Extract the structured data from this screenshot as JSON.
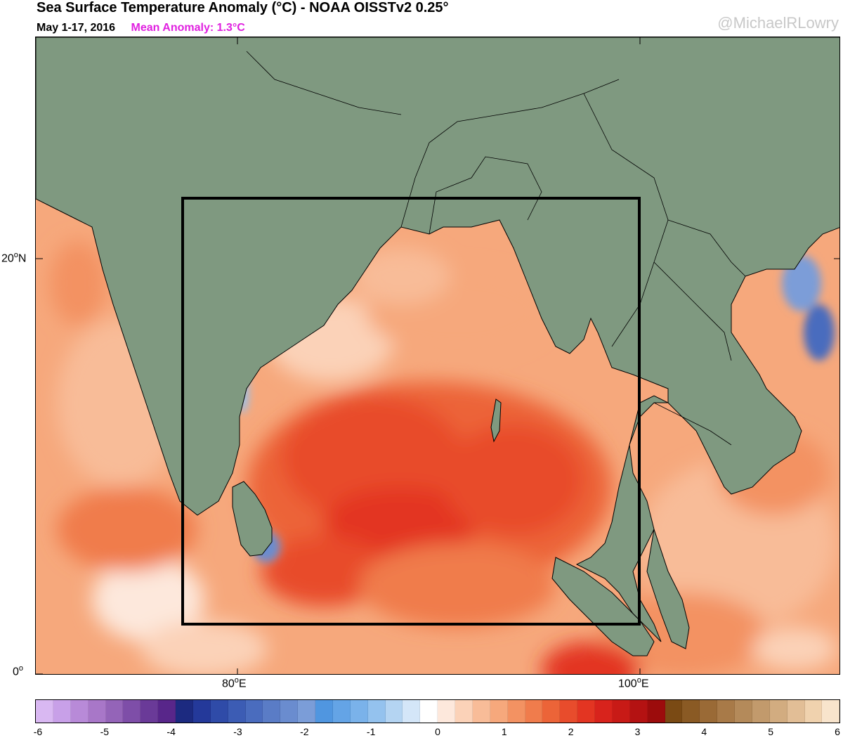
{
  "header": {
    "title": "Sea Surface Temperature Anomaly (°C) - NOAA OISSTv2 0.25°",
    "date_range": "May 1-17, 2016",
    "mean_anomaly": "Mean Anomaly: 1.3°C",
    "credit": "@MichaelRLowry"
  },
  "axes": {
    "lat_labels": [
      {
        "deg": "20",
        "hemi": "N"
      },
      {
        "deg": "0",
        "hemi": ""
      }
    ],
    "lon_labels": [
      {
        "deg": "80",
        "hemi": "E"
      },
      {
        "deg": "100",
        "hemi": "E"
      }
    ]
  },
  "colorbar": {
    "tick_labels": [
      "-6",
      "-5",
      "-4",
      "-3",
      "-2",
      "-1",
      "0",
      "1",
      "2",
      "3",
      "4",
      "5",
      "6"
    ],
    "colors": [
      "#d9b8f2",
      "#c8a0e8",
      "#b88ad8",
      "#a877c8",
      "#9464b8",
      "#7e4ea8",
      "#6a3a98",
      "#58268a",
      "#1c2a80",
      "#24399a",
      "#2f4ba8",
      "#3c5cb4",
      "#4a6cbe",
      "#5a7cc6",
      "#6a8ccf",
      "#7b9dd8",
      "#5096e0",
      "#64a4e6",
      "#7ab2ea",
      "#94c2ee",
      "#b4d4f2",
      "#d4e6f8",
      "#ffffff",
      "#fde8dc",
      "#fbd2b8",
      "#f8bc98",
      "#f6a87c",
      "#f39262",
      "#f07c4c",
      "#ec6438",
      "#e84c2c",
      "#e33522",
      "#d8231c",
      "#c81a16",
      "#b41212",
      "#9c0c0c",
      "#7a4a14",
      "#8a5a24",
      "#9a6a36",
      "#a87a48",
      "#b48a5a",
      "#c29a6c",
      "#d2ac80",
      "#e2be96",
      "#f0d2ae",
      "#f8e4cc"
    ]
  },
  "map": {
    "land_color": "#7f9980",
    "box_region": "Bay of Bengal analysis box"
  }
}
